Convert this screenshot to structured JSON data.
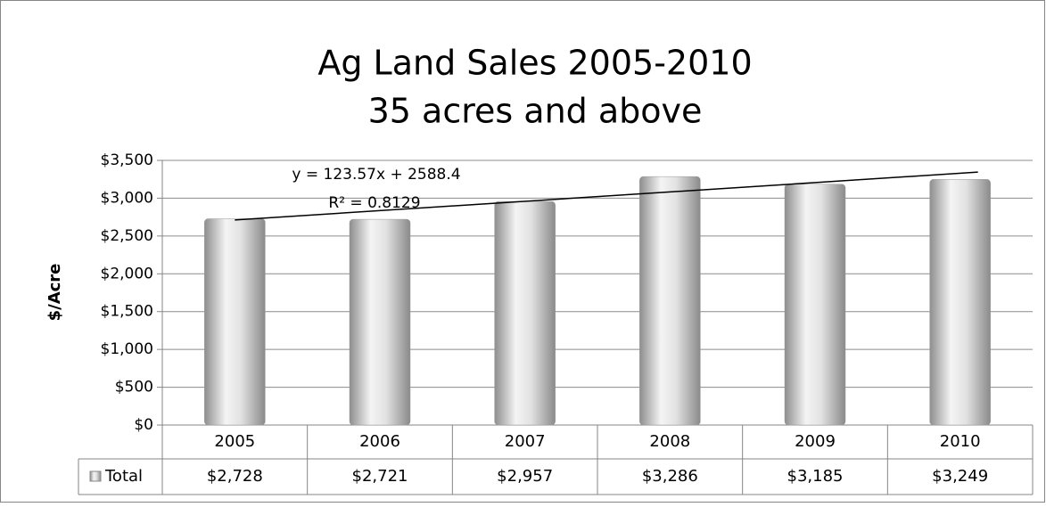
{
  "chart_data": {
    "type": "bar",
    "title": [
      "Ag Land Sales 2005-2010",
      "35 acres and above"
    ],
    "y_label": "$/Acre",
    "categories": [
      "2005",
      "2006",
      "2007",
      "2008",
      "2009",
      "2010"
    ],
    "series": [
      {
        "name": "Total",
        "color": "#c8c8c8",
        "values": [
          2728,
          2721,
          2957,
          3286,
          3185,
          3249
        ],
        "value_labels": [
          "$2,728",
          "$2,721",
          "$2,957",
          "$3,286",
          "$3,185",
          "$3,249"
        ]
      }
    ],
    "ylim": [
      0,
      3500
    ],
    "yticks": [
      {
        "value": 0,
        "label": "$0"
      },
      {
        "value": 500,
        "label": "$500"
      },
      {
        "value": 1000,
        "label": "$1,000"
      },
      {
        "value": 1500,
        "label": "$1,500"
      },
      {
        "value": 2000,
        "label": "$2,000"
      },
      {
        "value": 2500,
        "label": "$2,500"
      },
      {
        "value": 3000,
        "label": "$3,000"
      },
      {
        "value": 3500,
        "label": "$3,500"
      }
    ],
    "grid": true,
    "trendline": {
      "equation": "y = 123.57x + 2588.4",
      "r_squared_label": "R² = 0.8129",
      "slope": 123.57,
      "intercept": 2588.4
    }
  }
}
